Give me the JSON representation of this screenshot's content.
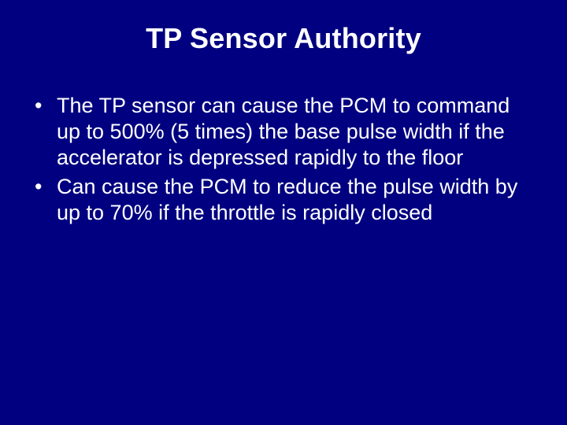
{
  "background_color": "#000080",
  "text_color": "#ffffff",
  "font_family": "Arial",
  "title": {
    "text": "TP Sensor Authority",
    "fontsize": 36,
    "weight": "bold",
    "align": "center"
  },
  "body": {
    "fontsize": 27,
    "bullets": [
      "The TP sensor can cause the PCM to command up to 500% (5 times) the base pulse width if the accelerator is depressed rapidly to the floor",
      "Can cause the PCM to reduce the pulse width by up to 70% if the throttle is rapidly closed"
    ]
  }
}
